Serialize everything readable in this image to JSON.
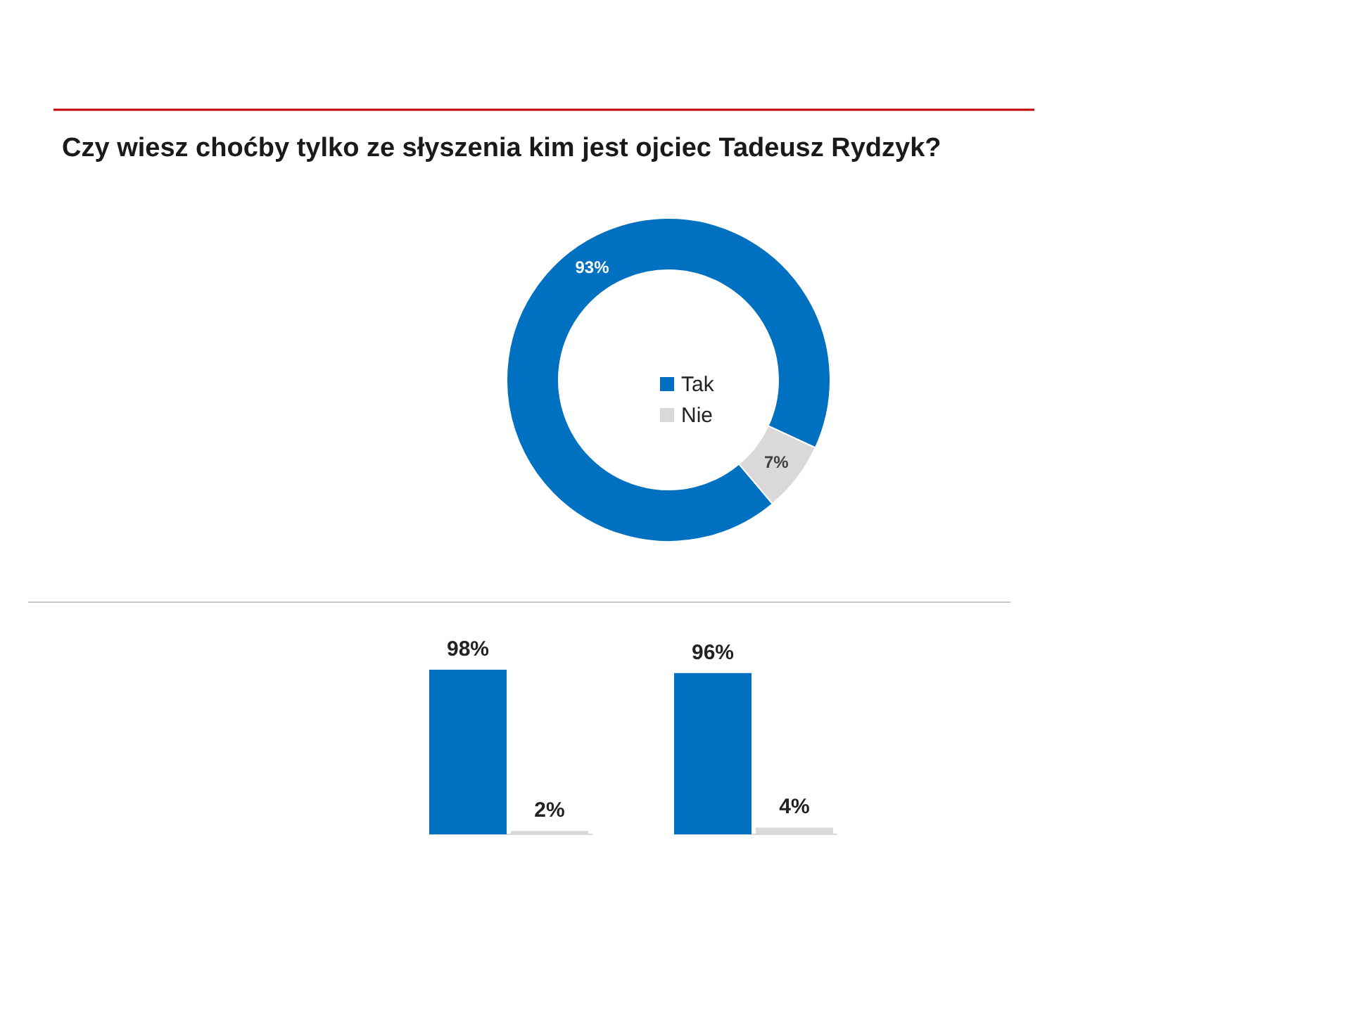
{
  "chart_data": [
    {
      "type": "donut",
      "title": "Czy wiesz choćby tylko ze słyszenia kim jest ojciec Tadeusz Rydzyk?",
      "categories": [
        "Tak",
        "Nie"
      ],
      "values": [
        93,
        7
      ],
      "colors": [
        "#0070c0",
        "#d9d9d9"
      ],
      "value_labels": [
        "93%",
        "7%"
      ],
      "legend": "center"
    },
    {
      "type": "bar",
      "categories": [
        null,
        null
      ],
      "series": [
        {
          "color": "#0070c0",
          "values": [
            98,
            96
          ],
          "value_labels": [
            "98%",
            "96%"
          ]
        },
        {
          "color": "#d9d9d9",
          "values": [
            2,
            4
          ],
          "value_labels": [
            "2%",
            "4%"
          ]
        }
      ]
    }
  ]
}
